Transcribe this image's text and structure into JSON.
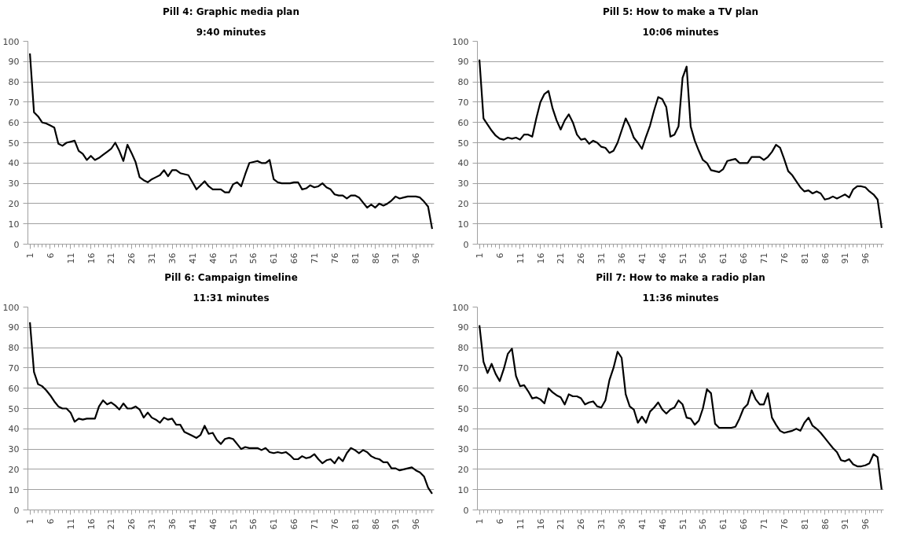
{
  "chart_data": [
    {
      "type": "line",
      "title": "Pill 4: Graphic media plan",
      "subtitle": "9:40 minutes",
      "color": "#000000",
      "grid": "y",
      "xlim": [
        0.5,
        100.5
      ],
      "xticks": [
        1,
        6,
        11,
        16,
        21,
        26,
        31,
        36,
        41,
        46,
        51,
        56,
        61,
        66,
        71,
        76,
        81,
        86,
        91,
        96
      ],
      "ylim": [
        0,
        100
      ],
      "yticks": [
        0,
        10,
        20,
        30,
        40,
        50,
        60,
        70,
        80,
        90,
        100
      ],
      "x": [
        1,
        2,
        3,
        4,
        5,
        6,
        7,
        8,
        9,
        10,
        11,
        12,
        13,
        14,
        15,
        16,
        17,
        18,
        19,
        20,
        21,
        22,
        23,
        24,
        25,
        26,
        27,
        28,
        29,
        30,
        31,
        32,
        33,
        34,
        35,
        36,
        37,
        38,
        39,
        40,
        41,
        42,
        43,
        44,
        45,
        46,
        47,
        48,
        49,
        50,
        51,
        52,
        53,
        54,
        55,
        56,
        57,
        58,
        59,
        60,
        61,
        62,
        63,
        64,
        65,
        66,
        67,
        68,
        69,
        70,
        71,
        72,
        73,
        74,
        75,
        76,
        77,
        78,
        79,
        80,
        81,
        82,
        83,
        84,
        85,
        86,
        87,
        88,
        89,
        90,
        91,
        92,
        93,
        94,
        95,
        96,
        97,
        98,
        99,
        100
      ],
      "values": [
        94,
        65,
        63,
        60,
        59.5,
        58.5,
        57.5,
        49.5,
        48.5,
        50,
        50.5,
        51,
        46,
        44.5,
        41.5,
        43.5,
        41.5,
        42.5,
        44,
        45.5,
        47,
        50,
        46,
        41,
        49,
        45,
        40.5,
        33,
        31.5,
        30.5,
        32,
        33,
        34,
        36.5,
        33.5,
        36.5,
        36.5,
        35,
        34.5,
        34,
        30.5,
        27,
        29,
        31,
        28.5,
        27,
        27,
        27,
        25.5,
        25.5,
        29.5,
        30.5,
        28.5,
        34.5,
        40,
        40.5,
        41,
        40,
        40,
        41.5,
        32,
        30.5,
        30,
        30,
        30,
        30.5,
        30.5,
        27,
        27.5,
        29,
        28,
        28.5,
        30,
        28,
        27,
        24.5,
        24,
        24,
        22.5,
        24,
        24,
        23,
        20.5,
        18,
        19.5,
        18,
        20,
        19,
        20,
        21.5,
        23.5,
        22.5,
        23,
        23.5,
        23.5,
        23.5,
        23,
        21,
        18.5,
        7.5
      ]
    },
    {
      "type": "line",
      "title": "Pill 5: How to make a TV plan",
      "subtitle": "10:06 minutes",
      "color": "#000000",
      "grid": "y",
      "xlim": [
        0.5,
        100.5
      ],
      "xticks": [
        1,
        6,
        11,
        16,
        21,
        26,
        31,
        36,
        41,
        46,
        51,
        56,
        61,
        66,
        71,
        76,
        81,
        86,
        91,
        96
      ],
      "ylim": [
        0,
        100
      ],
      "yticks": [
        0,
        10,
        20,
        30,
        40,
        50,
        60,
        70,
        80,
        90,
        100
      ],
      "x": [
        1,
        2,
        3,
        4,
        5,
        6,
        7,
        8,
        9,
        10,
        11,
        12,
        13,
        14,
        15,
        16,
        17,
        18,
        19,
        20,
        21,
        22,
        23,
        24,
        25,
        26,
        27,
        28,
        29,
        30,
        31,
        32,
        33,
        34,
        35,
        36,
        37,
        38,
        39,
        40,
        41,
        42,
        43,
        44,
        45,
        46,
        47,
        48,
        49,
        50,
        51,
        52,
        53,
        54,
        55,
        56,
        57,
        58,
        59,
        60,
        61,
        62,
        63,
        64,
        65,
        66,
        67,
        68,
        69,
        70,
        71,
        72,
        73,
        74,
        75,
        76,
        77,
        78,
        79,
        80,
        81,
        82,
        83,
        84,
        85,
        86,
        87,
        88,
        89,
        90,
        91,
        92,
        93,
        94,
        95,
        96,
        97,
        98,
        99,
        100
      ],
      "values": [
        91,
        62,
        59,
        56,
        53.5,
        52,
        51.5,
        52.5,
        52,
        52.5,
        51.5,
        54,
        54,
        53,
        62,
        70,
        74,
        75.5,
        67,
        61,
        56.5,
        61,
        64,
        60,
        54,
        51.5,
        52,
        49.5,
        51,
        50,
        48,
        47.5,
        45,
        46,
        50,
        56,
        62,
        58,
        52.5,
        50,
        47,
        53,
        58.5,
        66,
        72.5,
        71.5,
        67.5,
        53,
        54,
        58,
        82,
        87.5,
        58,
        51,
        46,
        41.5,
        40,
        36.5,
        36,
        35.5,
        37,
        41,
        41.5,
        42,
        40,
        40,
        40,
        43,
        43,
        43,
        41.5,
        43,
        45.5,
        49,
        47.5,
        42,
        36,
        34,
        31,
        28,
        26,
        26.5,
        25,
        26,
        25,
        22,
        22.5,
        23.5,
        22.5,
        23.5,
        24.5,
        23,
        27,
        28.5,
        28.5,
        28,
        26,
        24.5,
        22,
        8
      ]
    },
    {
      "type": "line",
      "title": "Pill 6: Campaign timeline",
      "subtitle": "11:31 minutes",
      "color": "#000000",
      "grid": "y",
      "xlim": [
        0.5,
        100.5
      ],
      "xticks": [
        1,
        6,
        11,
        16,
        21,
        26,
        31,
        36,
        41,
        46,
        51,
        56,
        61,
        66,
        71,
        76,
        81,
        86,
        91,
        96
      ],
      "ylim": [
        0,
        100
      ],
      "yticks": [
        0,
        10,
        20,
        30,
        40,
        50,
        60,
        70,
        80,
        90,
        100
      ],
      "x": [
        1,
        2,
        3,
        4,
        5,
        6,
        7,
        8,
        9,
        10,
        11,
        12,
        13,
        14,
        15,
        16,
        17,
        18,
        19,
        20,
        21,
        22,
        23,
        24,
        25,
        26,
        27,
        28,
        29,
        30,
        31,
        32,
        33,
        34,
        35,
        36,
        37,
        38,
        39,
        40,
        41,
        42,
        43,
        44,
        45,
        46,
        47,
        48,
        49,
        50,
        51,
        52,
        53,
        54,
        55,
        56,
        57,
        58,
        59,
        60,
        61,
        62,
        63,
        64,
        65,
        66,
        67,
        68,
        69,
        70,
        71,
        72,
        73,
        74,
        75,
        76,
        77,
        78,
        79,
        80,
        81,
        82,
        83,
        84,
        85,
        86,
        87,
        88,
        89,
        90,
        91,
        92,
        93,
        94,
        95,
        96,
        97,
        98,
        99,
        100
      ],
      "values": [
        92.5,
        68,
        62,
        61,
        59,
        56.5,
        53.5,
        51,
        50,
        50,
        48,
        43.5,
        45,
        44.5,
        45,
        45,
        45,
        51,
        54,
        52,
        53,
        51.5,
        49.5,
        52.5,
        50,
        50,
        51,
        49.5,
        45.5,
        48,
        45.5,
        44.5,
        43,
        45.5,
        44.5,
        45,
        42,
        42,
        38.5,
        37.5,
        36.5,
        35.5,
        37,
        41.5,
        37.5,
        38,
        34.5,
        32.5,
        35,
        35.5,
        35,
        32.5,
        30,
        31,
        30.5,
        30.5,
        30.5,
        29.5,
        30.5,
        28.5,
        28,
        28.5,
        28,
        28.5,
        27,
        25,
        25,
        26.5,
        25.5,
        26,
        27.5,
        25,
        23,
        24.5,
        25,
        23,
        26,
        24,
        28,
        30.5,
        29.5,
        28,
        29.5,
        28.5,
        26.5,
        25.5,
        25,
        23.5,
        23.5,
        20.5,
        20.5,
        19.5,
        20,
        20.5,
        21,
        19.5,
        18.5,
        16.5,
        11,
        8
      ]
    },
    {
      "type": "line",
      "title": "Pill 7: How to make a radio plan",
      "subtitle": "11:36 minutes",
      "color": "#000000",
      "grid": "y",
      "xlim": [
        0.5,
        100.5
      ],
      "xticks": [
        1,
        6,
        11,
        16,
        21,
        26,
        31,
        36,
        41,
        46,
        51,
        56,
        61,
        66,
        71,
        76,
        81,
        86,
        91,
        96
      ],
      "ylim": [
        0,
        100
      ],
      "yticks": [
        0,
        10,
        20,
        30,
        40,
        50,
        60,
        70,
        80,
        90,
        100
      ],
      "x": [
        1,
        2,
        3,
        4,
        5,
        6,
        7,
        8,
        9,
        10,
        11,
        12,
        13,
        14,
        15,
        16,
        17,
        18,
        19,
        20,
        21,
        22,
        23,
        24,
        25,
        26,
        27,
        28,
        29,
        30,
        31,
        32,
        33,
        34,
        35,
        36,
        37,
        38,
        39,
        40,
        41,
        42,
        43,
        44,
        45,
        46,
        47,
        48,
        49,
        50,
        51,
        52,
        53,
        54,
        55,
        56,
        57,
        58,
        59,
        60,
        61,
        62,
        63,
        64,
        65,
        66,
        67,
        68,
        69,
        70,
        71,
        72,
        73,
        74,
        75,
        76,
        77,
        78,
        79,
        80,
        81,
        82,
        83,
        84,
        85,
        86,
        87,
        88,
        89,
        90,
        91,
        92,
        93,
        94,
        95,
        96,
        97,
        98,
        99,
        100
      ],
      "values": [
        91,
        73,
        67.5,
        72,
        67,
        63.5,
        69.5,
        77,
        79.5,
        66,
        61,
        61.5,
        58.5,
        55,
        55.5,
        54.5,
        52.5,
        60,
        58,
        56.5,
        55.5,
        52,
        57,
        56,
        56,
        55,
        52,
        53,
        53.5,
        51,
        50.5,
        54,
        64,
        70,
        78,
        75,
        57,
        51,
        49.5,
        43,
        46,
        43,
        48.5,
        50.5,
        53,
        49.5,
        47.5,
        49.5,
        50.5,
        54,
        52,
        45.5,
        45,
        42,
        44,
        50,
        59.5,
        57.5,
        42.5,
        40.5,
        40.5,
        40.5,
        40.5,
        41,
        45,
        50,
        52,
        59,
        54.5,
        52,
        52,
        57.5,
        45.5,
        42,
        39,
        38,
        38.5,
        39,
        40,
        39,
        43,
        45.5,
        41.5,
        40,
        38,
        35.5,
        33,
        30.5,
        28.5,
        24.5,
        24,
        25,
        22.5,
        21.5,
        21.5,
        22,
        23,
        27.5,
        26,
        10
      ]
    }
  ]
}
